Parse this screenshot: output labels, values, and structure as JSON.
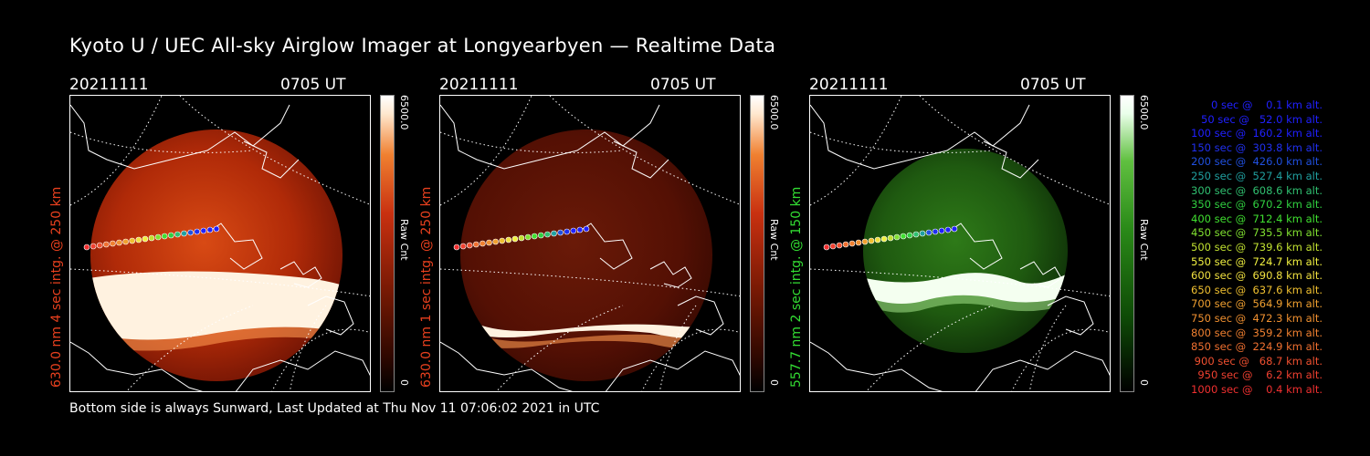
{
  "title": "Kyoto U / UEC All-sky Airglow Imager at Longyearbyen — Realtime Data",
  "footer": "Bottom side is always Sunward, Last Updated at Thu Nov 11 07:06:02 2021 in UTC",
  "panels": [
    {
      "date": "20211111",
      "time": "0705 UT",
      "label": "630.0 nm 4 sec intg. @ 250 km",
      "label_color": "#e8401e",
      "cbar_max": "6500.0",
      "cbar_unit": "Raw Cnt",
      "cbar_min": "0",
      "colormap": "red",
      "intensity": "bright"
    },
    {
      "date": "20211111",
      "time": "0705 UT",
      "label": "630.0 nm 1 sec intg. @ 250 km",
      "label_color": "#e8401e",
      "cbar_max": "6500.0",
      "cbar_unit": "Raw Cnt",
      "cbar_min": "0",
      "colormap": "red",
      "intensity": "dim"
    },
    {
      "date": "20211111",
      "time": "0705 UT",
      "label": "557.7 nm 2 sec intg. @ 150 km",
      "label_color": "#33dd33",
      "cbar_max": "6500.0",
      "cbar_unit": "Raw Cnt",
      "cbar_min": "0",
      "colormap": "green",
      "intensity": "green"
    }
  ],
  "legend": [
    {
      "text": "   0 sec @    0.1 km alt.",
      "color": "#2020ff"
    },
    {
      "text": "  50 sec @   52.0 km alt.",
      "color": "#2020ff"
    },
    {
      "text": " 100 sec @  160.2 km alt.",
      "color": "#2020ff"
    },
    {
      "text": " 150 sec @  303.8 km alt.",
      "color": "#2030f0"
    },
    {
      "text": " 200 sec @  426.0 km alt.",
      "color": "#2050e0"
    },
    {
      "text": " 250 sec @  527.4 km alt.",
      "color": "#20a0a0"
    },
    {
      "text": " 300 sec @  608.6 km alt.",
      "color": "#30c070"
    },
    {
      "text": " 350 sec @  670.2 km alt.",
      "color": "#30d040"
    },
    {
      "text": " 400 sec @  712.4 km alt.",
      "color": "#40e030"
    },
    {
      "text": " 450 sec @  735.5 km alt.",
      "color": "#80e030"
    },
    {
      "text": " 500 sec @  739.6 km alt.",
      "color": "#c0e030"
    },
    {
      "text": " 550 sec @  724.7 km alt.",
      "color": "#f0f040"
    },
    {
      "text": " 600 sec @  690.8 km alt.",
      "color": "#f0e040"
    },
    {
      "text": " 650 sec @  637.6 km alt.",
      "color": "#f0c030"
    },
    {
      "text": " 700 sec @  564.9 km alt.",
      "color": "#f0a030"
    },
    {
      "text": " 750 sec @  472.3 km alt.",
      "color": "#f09030"
    },
    {
      "text": " 800 sec @  359.2 km alt.",
      "color": "#f08030"
    },
    {
      "text": " 850 sec @  224.9 km alt.",
      "color": "#f07030"
    },
    {
      "text": " 900 sec @   68.7 km alt.",
      "color": "#f05030"
    },
    {
      "text": " 950 sec @    6.2 km alt.",
      "color": "#f04030"
    },
    {
      "text": "1000 sec @    0.4 km alt.",
      "color": "#f03030"
    }
  ]
}
